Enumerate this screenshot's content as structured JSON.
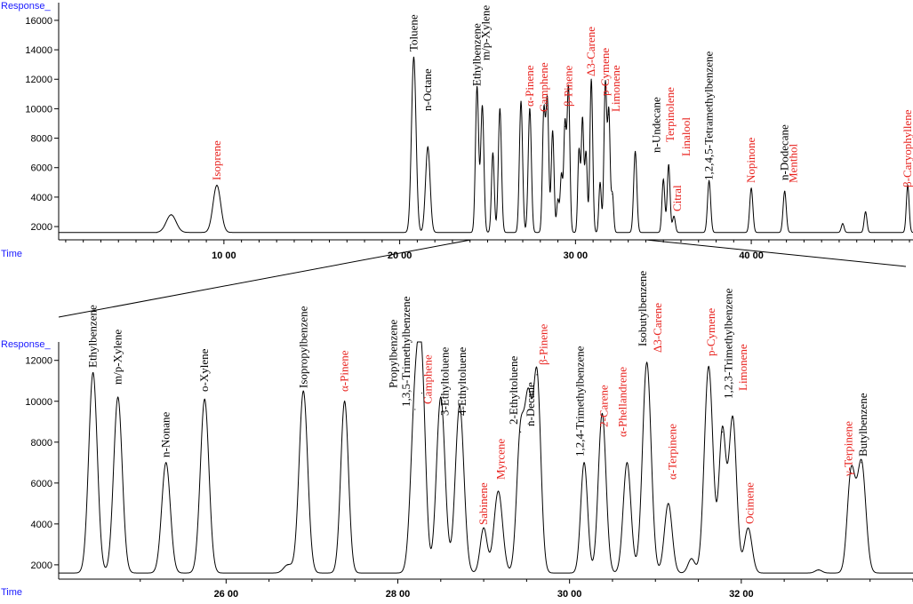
{
  "colors": {
    "black": "#000000",
    "red": "#e8231f",
    "axis_title": "#1a1aff"
  },
  "chart_data": [
    {
      "type": "line",
      "ylabel": "Response_",
      "xlabel": "Time",
      "xlim": [
        0.6,
        49.2
      ],
      "ylim": [
        1100,
        17200
      ],
      "yticks": [
        2000,
        4000,
        6000,
        8000,
        10000,
        12000,
        14000,
        16000
      ],
      "xticks": [
        10,
        20,
        30,
        40
      ],
      "xtick_labels": [
        "10 00",
        "20 00",
        "30 00",
        "40 00"
      ],
      "baseline": 1600,
      "series": [
        {
          "peaks": [
            {
              "x": 7.0,
              "y": 2800,
              "w": 0.28
            },
            {
              "x": 9.6,
              "y": 4800,
              "w": 0.22
            },
            {
              "x": 20.8,
              "y": 13500,
              "w": 0.13
            },
            {
              "x": 21.6,
              "y": 7400,
              "w": 0.13
            },
            {
              "x": 24.4,
              "y": 11500,
              "w": 0.09
            },
            {
              "x": 24.7,
              "y": 10200,
              "w": 0.09
            },
            {
              "x": 25.3,
              "y": 7000,
              "w": 0.08
            },
            {
              "x": 25.7,
              "y": 10000,
              "w": 0.09
            },
            {
              "x": 26.9,
              "y": 10500,
              "w": 0.09
            },
            {
              "x": 27.4,
              "y": 10000,
              "w": 0.09
            },
            {
              "x": 28.2,
              "y": 9800,
              "w": 0.08
            },
            {
              "x": 28.4,
              "y": 10500,
              "w": 0.08
            },
            {
              "x": 28.7,
              "y": 8500,
              "w": 0.08
            },
            {
              "x": 29.0,
              "y": 3800,
              "w": 0.07
            },
            {
              "x": 29.2,
              "y": 5500,
              "w": 0.07
            },
            {
              "x": 29.4,
              "y": 8800,
              "w": 0.07
            },
            {
              "x": 29.6,
              "y": 11500,
              "w": 0.08
            },
            {
              "x": 30.2,
              "y": 7200,
              "w": 0.07
            },
            {
              "x": 30.4,
              "y": 9300,
              "w": 0.07
            },
            {
              "x": 30.6,
              "y": 7000,
              "w": 0.07
            },
            {
              "x": 30.9,
              "y": 12000,
              "w": 0.08
            },
            {
              "x": 31.4,
              "y": 5000,
              "w": 0.07
            },
            {
              "x": 31.7,
              "y": 11800,
              "w": 0.08
            },
            {
              "x": 31.9,
              "y": 9600,
              "w": 0.07
            },
            {
              "x": 32.1,
              "y": 4200,
              "w": 0.07
            },
            {
              "x": 33.4,
              "y": 7100,
              "w": 0.09
            },
            {
              "x": 35.0,
              "y": 5200,
              "w": 0.08
            },
            {
              "x": 35.3,
              "y": 6200,
              "w": 0.08
            },
            {
              "x": 35.6,
              "y": 2700,
              "w": 0.08
            },
            {
              "x": 37.6,
              "y": 5100,
              "w": 0.09
            },
            {
              "x": 40.0,
              "y": 4600,
              "w": 0.09
            },
            {
              "x": 41.9,
              "y": 4400,
              "w": 0.09
            },
            {
              "x": 45.2,
              "y": 2200,
              "w": 0.08
            },
            {
              "x": 46.5,
              "y": 3000,
              "w": 0.08
            },
            {
              "x": 48.9,
              "y": 4800,
              "w": 0.08
            }
          ]
        }
      ],
      "annotations": [
        {
          "text": "Isoprene",
          "x": 9.6,
          "color": "red"
        },
        {
          "text": "Toluene",
          "x": 20.8,
          "color": "black"
        },
        {
          "text": "n-Octane",
          "x": 21.6,
          "color": "black"
        },
        {
          "text": "Ethylbenzene",
          "x": 24.4,
          "color": "black"
        },
        {
          "text": "m/p-Xylene",
          "x": 24.9,
          "color": "black"
        },
        {
          "text": "α-Pinene",
          "x": 27.4,
          "color": "red"
        },
        {
          "text": "Camphene",
          "x": 28.2,
          "color": "red"
        },
        {
          "text": "β-Pinene",
          "x": 29.6,
          "color": "red"
        },
        {
          "text": "Δ3-Carene",
          "x": 30.9,
          "color": "red"
        },
        {
          "text": "p-Cymene",
          "x": 31.7,
          "color": "red"
        },
        {
          "text": "Limonene",
          "x": 32.3,
          "color": "red"
        },
        {
          "text": "n-Undecane",
          "x": 34.6,
          "color": "black"
        },
        {
          "text": "Terpinolene",
          "x": 35.4,
          "color": "red"
        },
        {
          "text": "Linalool",
          "x": 36.3,
          "color": "red"
        },
        {
          "text": "Citral",
          "x": 35.8,
          "color": "red"
        },
        {
          "text": "1,2,4,5-Tetramethylbenzene",
          "x": 37.6,
          "color": "black"
        },
        {
          "text": "Nopinone",
          "x": 40.0,
          "color": "red"
        },
        {
          "text": "n-Dodecane",
          "x": 41.9,
          "color": "black"
        },
        {
          "text": "Menthol",
          "x": 42.4,
          "color": "red"
        },
        {
          "text": "β-Caryophyllene",
          "x": 48.9,
          "color": "red"
        }
      ]
    },
    {
      "type": "line",
      "ylabel": "Response_",
      "xlabel": "Time",
      "xlim": [
        24.05,
        34.0
      ],
      "ylim": [
        1300,
        12900
      ],
      "yticks": [
        2000,
        4000,
        6000,
        8000,
        10000,
        12000
      ],
      "xticks": [
        26,
        28,
        30,
        32
      ],
      "xtick_labels": [
        "26 00",
        "28 00",
        "30 00",
        "32 00"
      ],
      "baseline": 1600,
      "series": [
        {
          "peaks": [
            {
              "x": 24.45,
              "y": 11400,
              "w": 0.05
            },
            {
              "x": 24.74,
              "y": 10200,
              "w": 0.05
            },
            {
              "x": 25.3,
              "y": 7000,
              "w": 0.05
            },
            {
              "x": 25.75,
              "y": 10100,
              "w": 0.05
            },
            {
              "x": 26.72,
              "y": 2000,
              "w": 0.05
            },
            {
              "x": 26.9,
              "y": 10500,
              "w": 0.05
            },
            {
              "x": 27.38,
              "y": 10000,
              "w": 0.045
            },
            {
              "x": 28.2,
              "y": 9600,
              "w": 0.05
            },
            {
              "x": 28.28,
              "y": 10400,
              "w": 0.045
            },
            {
              "x": 28.5,
              "y": 10200,
              "w": 0.05
            },
            {
              "x": 28.72,
              "y": 9800,
              "w": 0.05
            },
            {
              "x": 29.0,
              "y": 3800,
              "w": 0.04
            },
            {
              "x": 29.17,
              "y": 5600,
              "w": 0.05
            },
            {
              "x": 29.43,
              "y": 8500,
              "w": 0.045
            },
            {
              "x": 29.52,
              "y": 8900,
              "w": 0.04
            },
            {
              "x": 29.62,
              "y": 11300,
              "w": 0.045
            },
            {
              "x": 30.17,
              "y": 7000,
              "w": 0.04
            },
            {
              "x": 30.38,
              "y": 9400,
              "w": 0.045
            },
            {
              "x": 30.67,
              "y": 7000,
              "w": 0.045
            },
            {
              "x": 30.9,
              "y": 11900,
              "w": 0.05
            },
            {
              "x": 31.15,
              "y": 5000,
              "w": 0.045
            },
            {
              "x": 31.42,
              "y": 2300,
              "w": 0.04
            },
            {
              "x": 31.62,
              "y": 11700,
              "w": 0.05
            },
            {
              "x": 31.78,
              "y": 8500,
              "w": 0.04
            },
            {
              "x": 31.9,
              "y": 9200,
              "w": 0.045
            },
            {
              "x": 32.08,
              "y": 3800,
              "w": 0.045
            },
            {
              "x": 32.9,
              "y": 1750,
              "w": 0.04
            },
            {
              "x": 33.28,
              "y": 6500,
              "w": 0.045
            },
            {
              "x": 33.4,
              "y": 7000,
              "w": 0.05
            }
          ]
        }
      ],
      "annotations": [
        {
          "text": "Ethylbenzene",
          "x": 24.45,
          "color": "black"
        },
        {
          "text": "m/p-Xylene",
          "x": 24.74,
          "color": "black"
        },
        {
          "text": "n-Nonane",
          "x": 25.3,
          "color": "black"
        },
        {
          "text": "o-Xylene",
          "x": 25.75,
          "color": "black"
        },
        {
          "text": "Isopropylbenzene",
          "x": 26.9,
          "color": "black"
        },
        {
          "text": "α-Pinene",
          "x": 27.38,
          "color": "red"
        },
        {
          "text": "Propylbenzene",
          "x": 27.95,
          "color": "black"
        },
        {
          "text": "1,3,5-Trimethylbenzene",
          "x": 28.1,
          "color": "black"
        },
        {
          "text": "Camphene",
          "x": 28.35,
          "color": "red"
        },
        {
          "text": "3-Ethyltoluene",
          "x": 28.55,
          "color": "black"
        },
        {
          "text": "4-Ethyltoluene",
          "x": 28.75,
          "color": "black"
        },
        {
          "text": "Sabinene",
          "x": 29.0,
          "color": "red"
        },
        {
          "text": "Myrcene",
          "x": 29.2,
          "color": "red"
        },
        {
          "text": "2-Ethyltoluene",
          "x": 29.35,
          "color": "black"
        },
        {
          "text": "n-Decane",
          "x": 29.55,
          "color": "black"
        },
        {
          "text": "β-Pinene",
          "x": 29.7,
          "color": "red"
        },
        {
          "text": "1,2,4-Trimethylbenzene",
          "x": 30.12,
          "color": "black"
        },
        {
          "text": "2-Carene",
          "x": 30.4,
          "color": "red"
        },
        {
          "text": "α-Phellandrene",
          "x": 30.62,
          "color": "red"
        },
        {
          "text": "Isobutylbenzene",
          "x": 30.85,
          "color": "black"
        },
        {
          "text": "Δ3-Carene",
          "x": 31.03,
          "color": "red"
        },
        {
          "text": "α-Terpinene",
          "x": 31.2,
          "color": "red"
        },
        {
          "text": "p-Cymene",
          "x": 31.65,
          "color": "red"
        },
        {
          "text": "1,2,3-Trimethylbenzene",
          "x": 31.85,
          "color": "black"
        },
        {
          "text": "Limonene",
          "x": 32.02,
          "color": "red"
        },
        {
          "text": "Ocimene",
          "x": 32.1,
          "color": "red"
        },
        {
          "text": "γ-Terpinene",
          "x": 33.25,
          "color": "red"
        },
        {
          "text": "Butylbenzene",
          "x": 33.42,
          "color": "black"
        }
      ]
    }
  ]
}
